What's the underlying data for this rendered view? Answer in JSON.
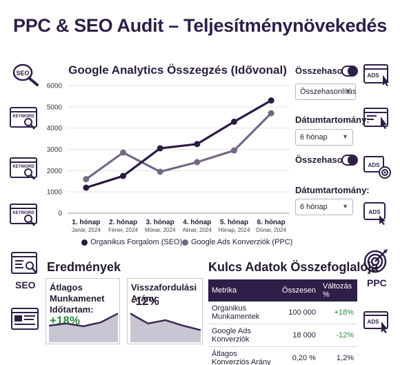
{
  "title": "PPC & SEO Audit – Teljesítménynövekedés",
  "left_icons": [
    "seo-magnifier-icon",
    "keyword-browser-icon",
    "keyword-browser-icon",
    "keyword-browser-icon",
    "seo-browser-icon",
    "browser-window-icon"
  ],
  "left_label": "SEO",
  "right_icons": [
    "ads-click-icon",
    "ads-cursor-icon",
    "ads-target-icon",
    "ads-pointer-icon",
    "target-icon",
    "ads-click-icon"
  ],
  "right_label": "PPC",
  "controls": {
    "compare1_label": "Összehason",
    "compare_select": "Összehasonlítás",
    "date1_label": "Dátumtartomány:",
    "date1_select": "6 hónap",
    "compare2_label": "Összehason",
    "date2_label": "Dátumtartomány:",
    "date2_select": "6 hónap"
  },
  "chart_data": {
    "type": "line",
    "title": "Google Analytics Összegzés (Idővonal)",
    "categories": [
      "1. hónap",
      "2. hónap",
      "3. hónap",
      "4. hónap",
      "5. hónap",
      "6. hónap"
    ],
    "category_sublabels": [
      "Janár, 2024",
      "Fèner, 2024",
      "Mònar, 2024",
      "Alinar, 2024",
      "Hònap, 2024",
      "Dònar, 2024"
    ],
    "ylim": [
      0,
      6000
    ],
    "yticks": [
      0,
      1000,
      2000,
      3000,
      4000,
      5000,
      6000
    ],
    "grid": true,
    "legend_position": "bottom",
    "series": [
      {
        "name": "Organikus Forgalom (SEO)",
        "color": "#2b1a40",
        "values": [
          1200,
          1750,
          3050,
          3250,
          4300,
          5300
        ]
      },
      {
        "name": "Google Ads Konverziók (PPC)",
        "color": "#746785",
        "values": [
          1600,
          2850,
          1950,
          2400,
          2950,
          4700
        ]
      }
    ]
  },
  "results": {
    "heading": "Eredmények",
    "card1": {
      "label": "Átlagos Munkamenet Időtartam:",
      "value": "+18%",
      "color": "#2e8b3a",
      "spark": [
        30,
        34,
        29,
        36,
        52
      ],
      "fill": "#c9c5d3",
      "stroke": "#3a2a50"
    },
    "card2": {
      "label": "Visszafordulási Arány:",
      "value": "-12%",
      "color": "#231a33",
      "spark": [
        52,
        34,
        40,
        30,
        22
      ],
      "fill": "#c9c5d3",
      "stroke": "#3a2a50"
    }
  },
  "summary": {
    "heading": "Kulcs Adatok Összefoglalója",
    "headers": [
      "Metrika",
      "Összesen",
      "Változás %"
    ],
    "rows": [
      {
        "metric": "Organikus Munkamentek",
        "total": "100 000",
        "change": "+18%",
        "positive": true
      },
      {
        "metric": "Google Ads Konverziók",
        "total": "18 000",
        "change": "-12%",
        "positive": true
      },
      {
        "metric": "Átlagos Konverziós Arány",
        "total": "0,20 %",
        "change": "1,2%",
        "positive": false
      }
    ]
  }
}
